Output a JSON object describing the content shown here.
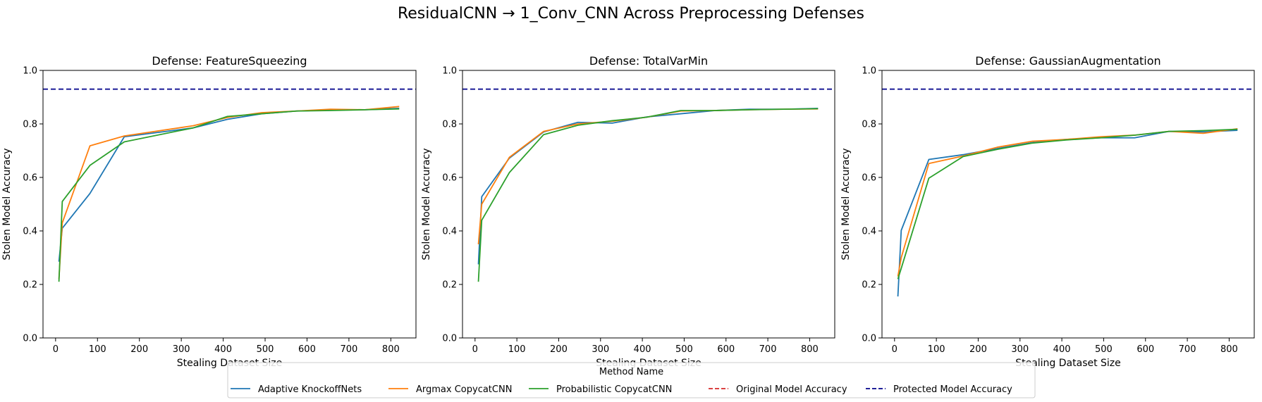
{
  "chart_data": {
    "type": "line",
    "title": "ResidualCNN → 1_Conv_CNN Across Preprocessing Defenses",
    "xlabel": "Stealing Dataset Size",
    "ylabel": "Stolen Model Accuracy",
    "xlim": [
      -30,
      860
    ],
    "ylim": [
      0.0,
      1.0
    ],
    "xticks": [
      0,
      100,
      200,
      300,
      400,
      500,
      600,
      700,
      800
    ],
    "yticks": [
      0.0,
      0.2,
      0.4,
      0.6,
      0.8,
      1.0
    ],
    "grid": false,
    "legend": {
      "title": "Method Name",
      "placement": "bottom-center",
      "entries": [
        {
          "label": "Adaptive KnockoffNets",
          "color": "#1f77b4",
          "style": "solid"
        },
        {
          "label": "Argmax CopycatCNN",
          "color": "#ff7f0e",
          "style": "solid"
        },
        {
          "label": "Probabilistic CopycatCNN",
          "color": "#2ca02c",
          "style": "solid"
        },
        {
          "label": "Original Model Accuracy",
          "color": "#d62728",
          "style": "dashed"
        },
        {
          "label": "Protected Model Accuracy",
          "color": "#00008b",
          "style": "dashed"
        }
      ]
    },
    "panels": [
      {
        "title": "Defense: FeatureSqueezing",
        "protected_accuracy": 0.93,
        "series": [
          {
            "name": "Adaptive KnockoffNets",
            "color": "#1f77b4",
            "x": [
              8,
              16,
              82,
              164,
              328,
              410,
              492,
              574,
              656,
              738,
              820
            ],
            "y": [
              0.285,
              0.41,
              0.54,
              0.752,
              0.785,
              0.817,
              0.838,
              0.848,
              0.852,
              0.853,
              0.858
            ]
          },
          {
            "name": "Argmax CopycatCNN",
            "color": "#ff7f0e",
            "x": [
              8,
              16,
              82,
              164,
              328,
              410,
              492,
              574,
              656,
              738,
              820
            ],
            "y": [
              0.22,
              0.43,
              0.718,
              0.755,
              0.793,
              0.824,
              0.842,
              0.848,
              0.855,
              0.853,
              0.865
            ]
          },
          {
            "name": "Probabilistic CopycatCNN",
            "color": "#2ca02c",
            "x": [
              8,
              16,
              82,
              164,
              328,
              410,
              492,
              574,
              656,
              738,
              820
            ],
            "y": [
              0.21,
              0.51,
              0.645,
              0.733,
              0.785,
              0.828,
              0.838,
              0.848,
              0.85,
              0.853,
              0.856
            ]
          }
        ]
      },
      {
        "title": "Defense: TotalVarMin",
        "protected_accuracy": 0.93,
        "series": [
          {
            "name": "Adaptive KnockoffNets",
            "color": "#1f77b4",
            "x": [
              8,
              16,
              82,
              164,
              246,
              328,
              410,
              492,
              574,
              656,
              738,
              820
            ],
            "y": [
              0.275,
              0.528,
              0.672,
              0.77,
              0.806,
              0.803,
              0.826,
              0.838,
              0.85,
              0.855,
              0.855,
              0.858
            ]
          },
          {
            "name": "Argmax CopycatCNN",
            "color": "#ff7f0e",
            "x": [
              8,
              16,
              82,
              164,
              246,
              328,
              410,
              492,
              574,
              656,
              738,
              820
            ],
            "y": [
              0.35,
              0.5,
              0.675,
              0.772,
              0.8,
              0.81,
              0.825,
              0.848,
              0.85,
              0.853,
              0.855,
              0.856
            ]
          },
          {
            "name": "Probabilistic CopycatCNN",
            "color": "#2ca02c",
            "x": [
              8,
              16,
              82,
              164,
              246,
              328,
              410,
              492,
              574,
              656,
              738,
              820
            ],
            "y": [
              0.21,
              0.44,
              0.618,
              0.76,
              0.795,
              0.812,
              0.825,
              0.85,
              0.85,
              0.853,
              0.855,
              0.857
            ]
          }
        ]
      },
      {
        "title": "Defense: GaussianAugmentation",
        "protected_accuracy": 0.93,
        "series": [
          {
            "name": "Adaptive KnockoffNets",
            "color": "#1f77b4",
            "x": [
              8,
              16,
              82,
              164,
              246,
              328,
              410,
              492,
              574,
              656,
              738,
              820
            ],
            "y": [
              0.155,
              0.402,
              0.667,
              0.685,
              0.708,
              0.73,
              0.742,
              0.748,
              0.748,
              0.772,
              0.77,
              0.776
            ]
          },
          {
            "name": "Argmax CopycatCNN",
            "color": "#ff7f0e",
            "x": [
              8,
              16,
              82,
              164,
              246,
              328,
              410,
              492,
              574,
              656,
              738,
              820
            ],
            "y": [
              0.23,
              0.3,
              0.652,
              0.68,
              0.713,
              0.735,
              0.742,
              0.752,
              0.758,
              0.772,
              0.765,
              0.782
            ]
          },
          {
            "name": "Probabilistic CopycatCNN",
            "color": "#2ca02c",
            "x": [
              8,
              16,
              82,
              164,
              246,
              328,
              410,
              492,
              574,
              656,
              738,
              820
            ],
            "y": [
              0.22,
              0.26,
              0.597,
              0.678,
              0.705,
              0.728,
              0.74,
              0.748,
              0.758,
              0.772,
              0.775,
              0.78
            ]
          }
        ]
      }
    ]
  }
}
